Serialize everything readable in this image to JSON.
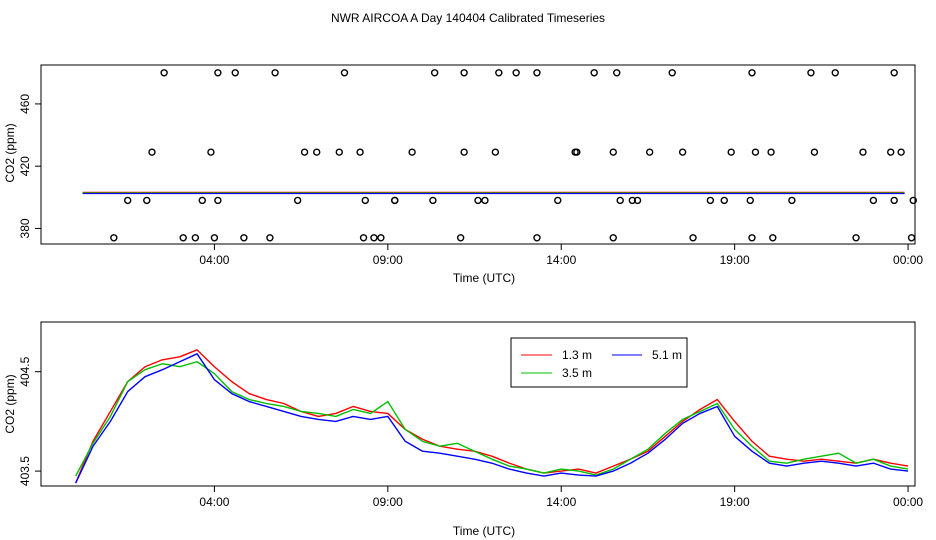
{
  "chart_data": [
    {
      "type": "scatter",
      "title": "NWR AIRCOA A  Day 140404  Calibrated Timeseries",
      "xlabel": "Time (UTC)",
      "ylabel": "CO2 (ppm)",
      "xlim": [
        -1.0,
        24.2
      ],
      "ylim": [
        370,
        485
      ],
      "xticks": [
        {
          "value": 4,
          "label": "04:00"
        },
        {
          "value": 9,
          "label": "09:00"
        },
        {
          "value": 14,
          "label": "14:00"
        },
        {
          "value": 19,
          "label": "19:00"
        },
        {
          "value": 24,
          "label": "00:00"
        }
      ],
      "yticks": [
        {
          "value": 380,
          "label": "380"
        },
        {
          "value": 420,
          "label": "420"
        },
        {
          "value": 460,
          "label": "460"
        }
      ],
      "points": {
        "x": [
          1.5,
          2.05,
          2.55,
          3.1,
          3.65,
          4.1,
          4.85,
          5.75,
          6.4,
          6.95,
          7.75,
          8.3,
          8.8,
          9.2,
          9.7,
          10.35,
          11.1,
          11.6,
          12.1,
          12.7,
          13.3,
          13.9,
          14.45,
          14.95,
          15.5,
          16.05,
          16.55,
          17.2,
          17.8,
          18.3,
          18.9,
          19.5,
          20.1,
          20.65,
          21.3,
          21.9,
          22.5,
          23.0,
          23.5,
          24.1,
          24.15,
          23.6,
          22.7,
          21.2,
          20.05,
          19.45,
          18.7,
          17.5,
          16.2,
          15.6,
          14.4,
          13.3,
          12.2,
          11.2,
          10.3,
          9.2,
          8.6,
          7.6,
          6.6,
          5.6,
          4.6,
          3.9,
          3.45,
          2.2,
          1.1,
          4.0,
          4.1,
          8.2,
          8.35,
          11.2,
          11.8,
          15.5,
          15.7,
          19.5,
          19.6,
          23.6,
          23.8
        ],
        "y": [
          398,
          398,
          480,
          374,
          398,
          480,
          374,
          480,
          398,
          429,
          480,
          374,
          374,
          398,
          429,
          480,
          374,
          398,
          429,
          480,
          374,
          398,
          429,
          480,
          374,
          398,
          429,
          480,
          374,
          398,
          429,
          480,
          374,
          398,
          429,
          480,
          374,
          398,
          429,
          374,
          398,
          480,
          429,
          480,
          429,
          398,
          398,
          429,
          398,
          480,
          429,
          480,
          480,
          429,
          398,
          398,
          374,
          429,
          429,
          374,
          480,
          429,
          374,
          429,
          374,
          374,
          398,
          429,
          398,
          480,
          398,
          429,
          398,
          374,
          429,
          398,
          429
        ]
      },
      "series": [
        {
          "name": "1.3 m",
          "color": "#ff0000",
          "values": [
            402.8,
            402.8
          ]
        },
        {
          "name": "3.5 m",
          "color": "#00c000",
          "values": [
            402.8,
            402.8
          ]
        },
        {
          "name": "5.1 m",
          "color": "#0000ff",
          "values": [
            402.8,
            402.8
          ]
        }
      ],
      "flat_x": [
        0.2,
        23.9
      ]
    },
    {
      "type": "line",
      "title": "",
      "xlabel": "Time (UTC)",
      "ylabel": "CO2 (ppm)",
      "xlim": [
        -1.0,
        24.2
      ],
      "ylim": [
        403.35,
        405.0
      ],
      "xticks": [
        {
          "value": 4,
          "label": "04:00"
        },
        {
          "value": 9,
          "label": "09:00"
        },
        {
          "value": 14,
          "label": "14:00"
        },
        {
          "value": 19,
          "label": "19:00"
        },
        {
          "value": 24,
          "label": "00:00"
        }
      ],
      "yticks": [
        {
          "value": 403.5,
          "label": "403.5"
        },
        {
          "value": 404.5,
          "label": "404.5"
        }
      ],
      "legend": {
        "position": "top-right"
      },
      "x": [
        0.0,
        0.5,
        1.0,
        1.5,
        2.0,
        2.5,
        3.0,
        3.5,
        4.0,
        4.5,
        5.0,
        5.5,
        6.0,
        6.5,
        7.0,
        7.5,
        8.0,
        8.5,
        9.0,
        9.5,
        10.0,
        10.5,
        11.0,
        11.5,
        12.0,
        12.5,
        13.0,
        13.5,
        14.0,
        14.5,
        15.0,
        15.5,
        16.0,
        16.5,
        17.0,
        17.5,
        18.0,
        18.5,
        19.0,
        19.5,
        20.0,
        20.5,
        21.0,
        21.5,
        22.0,
        22.5,
        23.0,
        23.5,
        24.0
      ],
      "series": [
        {
          "name": "1.3 m",
          "color": "#ff0000",
          "values": [
            403.38,
            403.8,
            404.1,
            404.4,
            404.55,
            404.62,
            404.65,
            404.72,
            404.55,
            404.4,
            404.28,
            404.22,
            404.18,
            404.1,
            404.05,
            404.08,
            404.15,
            404.1,
            404.08,
            403.92,
            403.82,
            403.75,
            403.72,
            403.7,
            403.65,
            403.58,
            403.52,
            403.48,
            403.5,
            403.52,
            403.48,
            403.55,
            403.62,
            403.7,
            403.85,
            404.0,
            404.12,
            404.22,
            404.0,
            403.8,
            403.65,
            403.62,
            403.6,
            403.62,
            403.6,
            403.58,
            403.62,
            403.58,
            403.55
          ]
        },
        {
          "name": "3.5 m",
          "color": "#00c000",
          "values": [
            403.45,
            403.78,
            404.05,
            404.4,
            404.52,
            404.58,
            404.55,
            404.6,
            404.48,
            404.3,
            404.22,
            404.18,
            404.15,
            404.1,
            404.08,
            404.05,
            404.12,
            404.08,
            404.2,
            403.92,
            403.8,
            403.75,
            403.78,
            403.7,
            403.62,
            403.55,
            403.52,
            403.48,
            403.52,
            403.5,
            403.46,
            403.52,
            403.62,
            403.72,
            403.88,
            404.02,
            404.1,
            404.18,
            403.92,
            403.75,
            403.6,
            403.58,
            403.62,
            403.65,
            403.68,
            403.58,
            403.62,
            403.55,
            403.52
          ]
        },
        {
          "name": "5.1 m",
          "color": "#0000ff",
          "values": [
            403.38,
            403.75,
            404.0,
            404.3,
            404.45,
            404.52,
            404.6,
            404.68,
            404.42,
            404.28,
            404.2,
            404.15,
            404.1,
            404.05,
            404.02,
            404.0,
            404.05,
            404.02,
            404.05,
            403.8,
            403.7,
            403.68,
            403.65,
            403.62,
            403.58,
            403.52,
            403.48,
            403.45,
            403.48,
            403.46,
            403.45,
            403.5,
            403.58,
            403.68,
            403.82,
            403.98,
            404.08,
            404.15,
            403.85,
            403.7,
            403.58,
            403.55,
            403.58,
            403.6,
            403.58,
            403.55,
            403.58,
            403.52,
            403.5
          ]
        }
      ]
    }
  ]
}
